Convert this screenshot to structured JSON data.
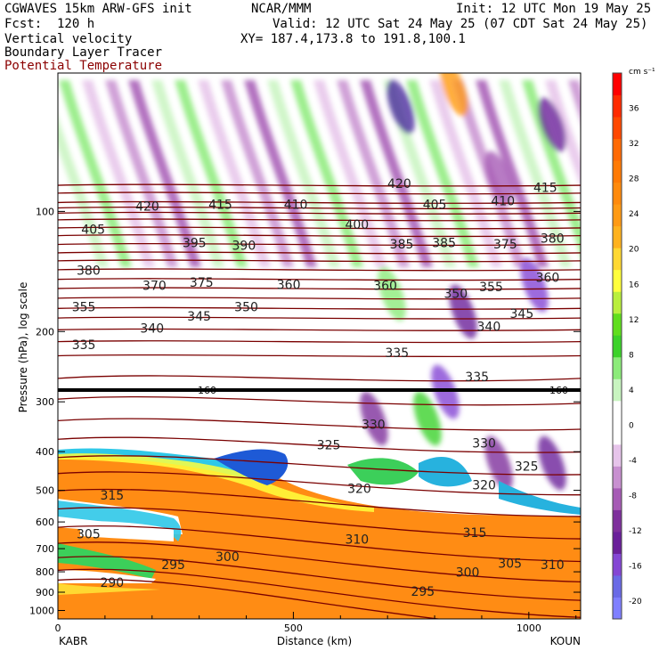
{
  "header": {
    "model": "CGWAVES 15km ARW-GFS init",
    "center": "NCAR/MMM",
    "init": "Init: 12 UTC Mon 19 May 25",
    "fcst": "Fcst:  120 h",
    "valid": "Valid: 12 UTC Sat 24 May 25 (07 CDT Sat 24 May 25)",
    "field1": "Vertical velocity",
    "xy": "XY= 187.4,173.8 to 191.8,100.1",
    "field2": "Boundary Layer Tracer",
    "field3": "Potential Temperature"
  },
  "chart_data": {
    "type": "heatmap",
    "xlabel": "Distance (km)",
    "ylabel": "Pressure (hPa), log scale",
    "x_ticks": [
      "0",
      "500",
      "1000"
    ],
    "x_tick_values": [
      0,
      500,
      1000
    ],
    "xlim": [
      0,
      1110
    ],
    "y_scale": "log",
    "y_ticks": [
      "100",
      "200",
      "300",
      "400",
      "500",
      "600",
      "700",
      "800",
      "900",
      "1000"
    ],
    "y_tick_values": [
      100,
      200,
      300,
      400,
      500,
      600,
      700,
      800,
      900,
      1000
    ],
    "ylim": [
      1050,
      45
    ],
    "left_endpoint": "KABR",
    "right_endpoint": "KOUN",
    "colorbar": {
      "units": "cm s⁻¹",
      "labels": [
        "36",
        "32",
        "28",
        "24",
        "20",
        "16",
        "12",
        "8",
        "4",
        "0",
        "-4",
        "-8",
        "-12",
        "-16",
        "-20"
      ],
      "label_values": [
        36,
        32,
        28,
        24,
        20,
        16,
        12,
        8,
        4,
        0,
        -4,
        -8,
        -12,
        -16,
        -20
      ],
      "range": [
        -22,
        40
      ],
      "colors": [
        "#7f7fff",
        "#6a6ae6",
        "#8446d4",
        "#6a1f9a",
        "#7e2f9c",
        "#a65bb5",
        "#c890d0",
        "#e6c4ea",
        "#ffffff",
        "#ffffff",
        "#c8f4c0",
        "#8ceb7a",
        "#3cd22a",
        "#60de1e",
        "#b9ef3d",
        "#ffff3c",
        "#ffd832",
        "#ffb21e",
        "#ff9a14",
        "#ff8a0c",
        "#ff7a04",
        "#ff6a04",
        "#ff4800",
        "#ff2a00",
        "#ff0000"
      ]
    },
    "tropopause_marker": "160",
    "theta_labels": [
      {
        "text": "420",
        "x": 190,
        "p": 98
      },
      {
        "text": "415",
        "x": 345,
        "p": 97
      },
      {
        "text": "410",
        "x": 505,
        "p": 97
      },
      {
        "text": "420",
        "x": 725,
        "p": 86
      },
      {
        "text": "405",
        "x": 800,
        "p": 97
      },
      {
        "text": "410",
        "x": 945,
        "p": 95
      },
      {
        "text": "415",
        "x": 1035,
        "p": 88
      },
      {
        "text": "405",
        "x": 75,
        "p": 112
      },
      {
        "text": "395",
        "x": 290,
        "p": 121
      },
      {
        "text": "390",
        "x": 395,
        "p": 123
      },
      {
        "text": "400",
        "x": 635,
        "p": 109
      },
      {
        "text": "385",
        "x": 730,
        "p": 122
      },
      {
        "text": "385",
        "x": 820,
        "p": 121
      },
      {
        "text": "375",
        "x": 950,
        "p": 122
      },
      {
        "text": "380",
        "x": 1050,
        "p": 118
      },
      {
        "text": "380",
        "x": 65,
        "p": 142
      },
      {
        "text": "370",
        "x": 205,
        "p": 155
      },
      {
        "text": "375",
        "x": 305,
        "p": 152
      },
      {
        "text": "360",
        "x": 490,
        "p": 154
      },
      {
        "text": "360",
        "x": 695,
        "p": 155
      },
      {
        "text": "350",
        "x": 845,
        "p": 162
      },
      {
        "text": "355",
        "x": 920,
        "p": 156
      },
      {
        "text": "360",
        "x": 1040,
        "p": 148
      },
      {
        "text": "355",
        "x": 55,
        "p": 175
      },
      {
        "text": "345",
        "x": 300,
        "p": 185
      },
      {
        "text": "350",
        "x": 400,
        "p": 175
      },
      {
        "text": "340",
        "x": 200,
        "p": 198
      },
      {
        "text": "340",
        "x": 915,
        "p": 196
      },
      {
        "text": "345",
        "x": 985,
        "p": 182
      },
      {
        "text": "335",
        "x": 55,
        "p": 218
      },
      {
        "text": "335",
        "x": 720,
        "p": 228
      },
      {
        "text": "335",
        "x": 890,
        "p": 262
      },
      {
        "text": "330",
        "x": 670,
        "p": 345
      },
      {
        "text": "330",
        "x": 905,
        "p": 385
      },
      {
        "text": "325",
        "x": 575,
        "p": 388
      },
      {
        "text": "325",
        "x": 995,
        "p": 440
      },
      {
        "text": "320",
        "x": 640,
        "p": 500
      },
      {
        "text": "320",
        "x": 905,
        "p": 490
      },
      {
        "text": "315",
        "x": 115,
        "p": 520
      },
      {
        "text": "315",
        "x": 885,
        "p": 645
      },
      {
        "text": "310",
        "x": 635,
        "p": 670
      },
      {
        "text": "310",
        "x": 1050,
        "p": 775
      },
      {
        "text": "305",
        "x": 65,
        "p": 650
      },
      {
        "text": "305",
        "x": 960,
        "p": 770
      },
      {
        "text": "300",
        "x": 360,
        "p": 740
      },
      {
        "text": "300",
        "x": 870,
        "p": 810
      },
      {
        "text": "295",
        "x": 245,
        "p": 775
      },
      {
        "text": "295",
        "x": 775,
        "p": 905
      },
      {
        "text": "290",
        "x": 115,
        "p": 860
      }
    ]
  }
}
